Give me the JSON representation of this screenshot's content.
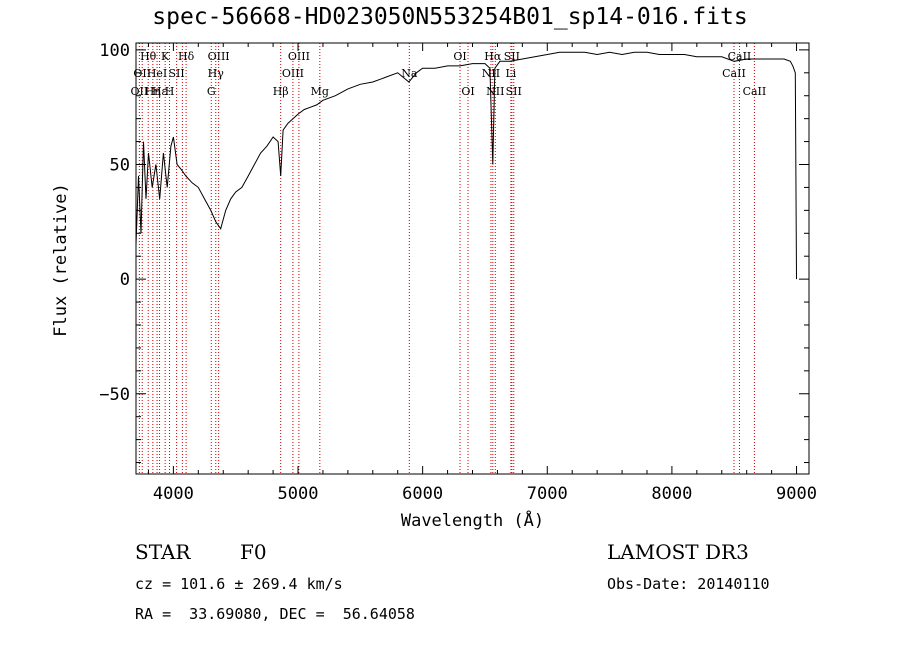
{
  "title": "spec-56668-HD023050N553254B01_sp14-016.fits",
  "xlabel": "Wavelength (Å)",
  "ylabel": "Flux (relative)",
  "info": {
    "class": "STAR",
    "subclass": "F0",
    "survey": "LAMOST DR3",
    "cz": "cz = 101.6 ± 269.4 km/s",
    "obs_date": "Obs-Date: 20140110",
    "radec": "RA =  33.69080, DEC =  56.64058"
  },
  "chart_data": {
    "type": "line",
    "title": "spec-56668-HD023050N553254B01_sp14-016.fits",
    "xlabel": "Wavelength (Å)",
    "ylabel": "Flux (relative)",
    "xlim": [
      3700,
      9100
    ],
    "ylim": [
      -85,
      103
    ],
    "xticks": [
      4000,
      5000,
      6000,
      7000,
      8000,
      9000
    ],
    "yticks": [
      -50,
      0,
      50,
      100
    ],
    "grid": false,
    "series": [
      {
        "x": [
          3700,
          3720,
          3740,
          3760,
          3780,
          3800,
          3830,
          3860,
          3890,
          3920,
          3950,
          3980,
          4000,
          4030,
          4060,
          4100,
          4150,
          4200,
          4250,
          4300,
          4340,
          4380,
          4420,
          4460,
          4500,
          4550,
          4600,
          4650,
          4700,
          4750,
          4800,
          4840,
          4861,
          4880,
          4920,
          4960,
          5000,
          5050,
          5100,
          5150,
          5200,
          5300,
          5400,
          5500,
          5600,
          5700,
          5800,
          5890,
          5950,
          6000,
          6100,
          6200,
          6300,
          6400,
          6500,
          6540,
          6563,
          6580,
          6620,
          6700,
          6800,
          6900,
          7000,
          7100,
          7200,
          7300,
          7400,
          7500,
          7600,
          7700,
          7800,
          7900,
          8000,
          8100,
          8200,
          8300,
          8400,
          8500,
          8600,
          8700,
          8800,
          8900,
          8950,
          8970,
          8990,
          9000
        ],
        "y": [
          15,
          45,
          20,
          60,
          35,
          55,
          40,
          50,
          35,
          55,
          40,
          58,
          62,
          50,
          48,
          45,
          42,
          40,
          35,
          30,
          25,
          22,
          30,
          35,
          38,
          40,
          45,
          50,
          55,
          58,
          62,
          60,
          45,
          65,
          68,
          70,
          72,
          74,
          75,
          76,
          78,
          80,
          83,
          85,
          86,
          88,
          90,
          86,
          90,
          92,
          92,
          93,
          93,
          94,
          94,
          92,
          50,
          92,
          95,
          95,
          96,
          97,
          98,
          99,
          99,
          99,
          98,
          99,
          98,
          99,
          99,
          98,
          98,
          98,
          97,
          97,
          97,
          95,
          96,
          96,
          96,
          96,
          95,
          93,
          90,
          0
        ]
      }
    ],
    "lines": [
      {
        "x": 3727,
        "label": "OII",
        "row": 3
      },
      {
        "x": 3750,
        "label": "OII",
        "row": 2
      },
      {
        "x": 3798,
        "label": "Hθ",
        "row": 1
      },
      {
        "x": 3835,
        "label": "Hη",
        "row": 3
      },
      {
        "x": 3869,
        "label": "HeI",
        "row": 2
      },
      {
        "x": 3889,
        "label": "Hε",
        "row": 3
      },
      {
        "x": 3934,
        "label": "K",
        "row": 1
      },
      {
        "x": 3969,
        "label": "H",
        "row": 3
      },
      {
        "x": 4026,
        "label": "SII",
        "row": 2
      },
      {
        "x": 4072,
        "label": "",
        "row": 0
      },
      {
        "x": 4102,
        "label": "Hδ",
        "row": 1
      },
      {
        "x": 4304,
        "label": "G",
        "row": 3
      },
      {
        "x": 4340,
        "label": "Hγ",
        "row": 2
      },
      {
        "x": 4363,
        "label": "OIII",
        "row": 1
      },
      {
        "x": 4861,
        "label": "Hβ",
        "row": 3
      },
      {
        "x": 4959,
        "label": "OIII",
        "row": 2
      },
      {
        "x": 5007,
        "label": "OIII",
        "row": 1
      },
      {
        "x": 5175,
        "label": "Mg",
        "row": 3
      },
      {
        "x": 5893,
        "label": "Na",
        "row": 2
      },
      {
        "x": 6300,
        "label": "OI",
        "row": 1
      },
      {
        "x": 6364,
        "label": "OI",
        "row": 3
      },
      {
        "x": 6548,
        "label": "NII",
        "row": 2
      },
      {
        "x": 6563,
        "label": "Hα",
        "row": 1
      },
      {
        "x": 6583,
        "label": "NII",
        "row": 3
      },
      {
        "x": 6708,
        "label": "Li",
        "row": 2
      },
      {
        "x": 6716,
        "label": "SII",
        "row": 1
      },
      {
        "x": 6731,
        "label": "SII",
        "row": 3
      },
      {
        "x": 8498,
        "label": "CaII",
        "row": 2
      },
      {
        "x": 8542,
        "label": "CaII",
        "row": 1
      },
      {
        "x": 8662,
        "label": "CaII",
        "row": 3
      }
    ]
  }
}
